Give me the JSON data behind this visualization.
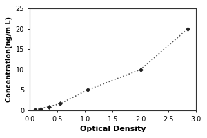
{
  "title": "",
  "xlabel": "Optical Density",
  "ylabel": "Concentration(ng/m L)",
  "xlim": [
    0,
    3.0
  ],
  "ylim": [
    0,
    25
  ],
  "xticks": [
    0,
    0.5,
    1.0,
    1.5,
    2.0,
    2.5,
    3.0
  ],
  "yticks": [
    0,
    5,
    10,
    15,
    20,
    25
  ],
  "x_data": [
    0.1,
    0.2,
    0.35,
    0.55,
    1.05,
    2.0,
    2.85
  ],
  "y_data": [
    0.15,
    0.4,
    0.9,
    1.6,
    5.0,
    10.0,
    20.0
  ],
  "line_color": "#555555",
  "marker_color": "#222222",
  "marker": "D",
  "marker_size": 3,
  "line_style": ":",
  "line_width": 1.2,
  "plot_bg_color": "#ffffff",
  "figure_bg_color": "#ffffff",
  "xlabel_fontsize": 8,
  "ylabel_fontsize": 7,
  "tick_fontsize": 7,
  "spine_color": "#333333",
  "spine_linewidth": 0.8
}
